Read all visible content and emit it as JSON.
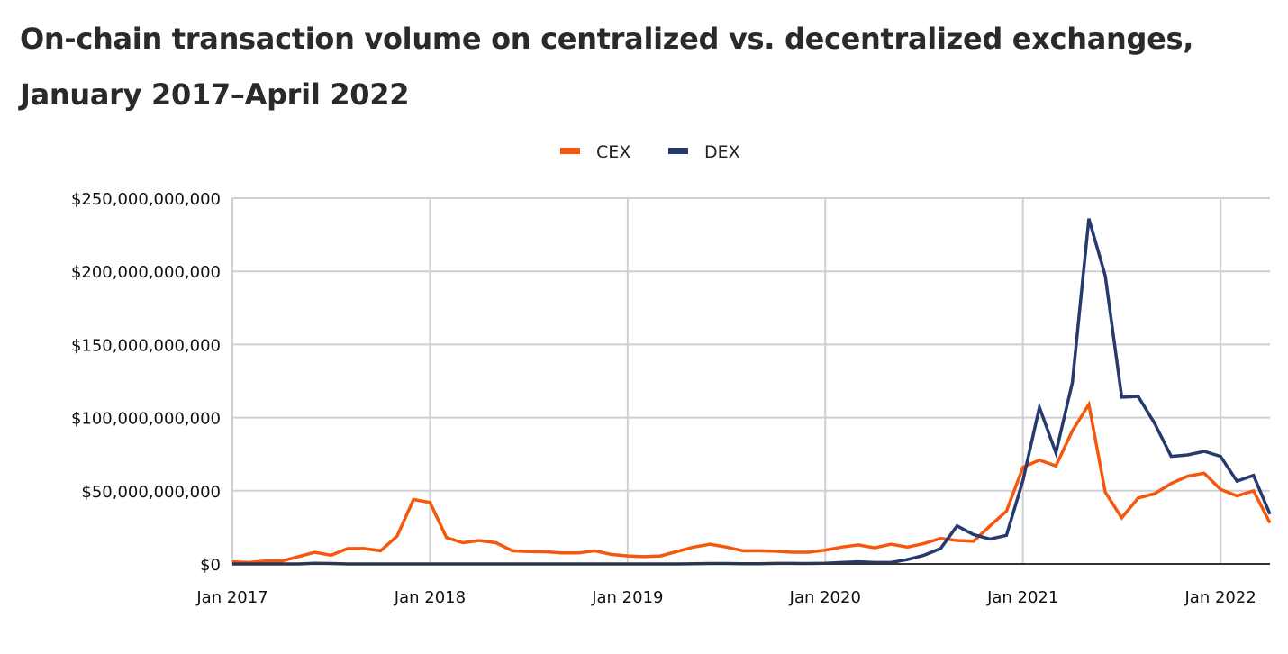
{
  "chart_data": {
    "type": "line",
    "title_line1": "On-chain transaction volume on centralized vs. decentralized exchanges,",
    "title_line2": "January 2017–April 2022",
    "xlabel": "",
    "ylabel": "",
    "units": "billions USD",
    "ylim": [
      0,
      250
    ],
    "yticks": [
      {
        "value": 0,
        "label": "$0"
      },
      {
        "value": 50,
        "label": "$50,000,000,000"
      },
      {
        "value": 100,
        "label": "$100,000,000,000"
      },
      {
        "value": 150,
        "label": "$150,000,000,000"
      },
      {
        "value": 200,
        "label": "$200,000,000,000"
      },
      {
        "value": 250,
        "label": "$250,000,000,000"
      }
    ],
    "xticks": [
      {
        "index": 0,
        "label": "Jan 2017"
      },
      {
        "index": 12,
        "label": "Jan 2018"
      },
      {
        "index": 24,
        "label": "Jan 2019"
      },
      {
        "index": 36,
        "label": "Jan 2020"
      },
      {
        "index": 48,
        "label": "Jan 2021"
      },
      {
        "index": 60,
        "label": "Jan 2022"
      }
    ],
    "x_start": "Jan 2017",
    "x_end": "Apr 2022",
    "grid": true,
    "legend_position": "top-center",
    "series": [
      {
        "name": "CEX",
        "color": "#f5570c",
        "values": [
          1.5,
          1,
          2,
          2,
          5,
          8,
          6,
          10.5,
          10.5,
          9,
          19,
          44,
          42,
          18,
          14.5,
          16,
          14.5,
          9,
          8.5,
          8.3,
          7.5,
          7.5,
          9,
          6.5,
          5.5,
          5,
          5.5,
          8.5,
          11.5,
          13.5,
          11.5,
          9,
          9,
          8.7,
          8,
          8,
          9.5,
          11.5,
          13,
          11,
          13.5,
          11.5,
          14,
          17.5,
          16,
          15.5,
          26,
          36,
          66,
          71,
          67,
          91,
          109,
          49,
          31.5,
          45,
          48,
          55,
          60,
          62,
          51,
          46.5,
          50,
          28
        ]
      },
      {
        "name": "DEX",
        "color": "#263a6e",
        "values": [
          0,
          0,
          0,
          0,
          0,
          0.5,
          0.3,
          0,
          0,
          0,
          0,
          0,
          0,
          0,
          0,
          0,
          0,
          0,
          0,
          0,
          0,
          0,
          0,
          0,
          0,
          0,
          0,
          0,
          0.2,
          0.3,
          0.3,
          0.2,
          0.2,
          0.4,
          0.4,
          0.3,
          0.5,
          1,
          1.5,
          1,
          1,
          3,
          6,
          10.5,
          26,
          20,
          17,
          19.5,
          57,
          107,
          76,
          124,
          236,
          197,
          114,
          114.5,
          96,
          73.5,
          74.5,
          77,
          73.5,
          56.5,
          60.5,
          34
        ]
      }
    ]
  }
}
